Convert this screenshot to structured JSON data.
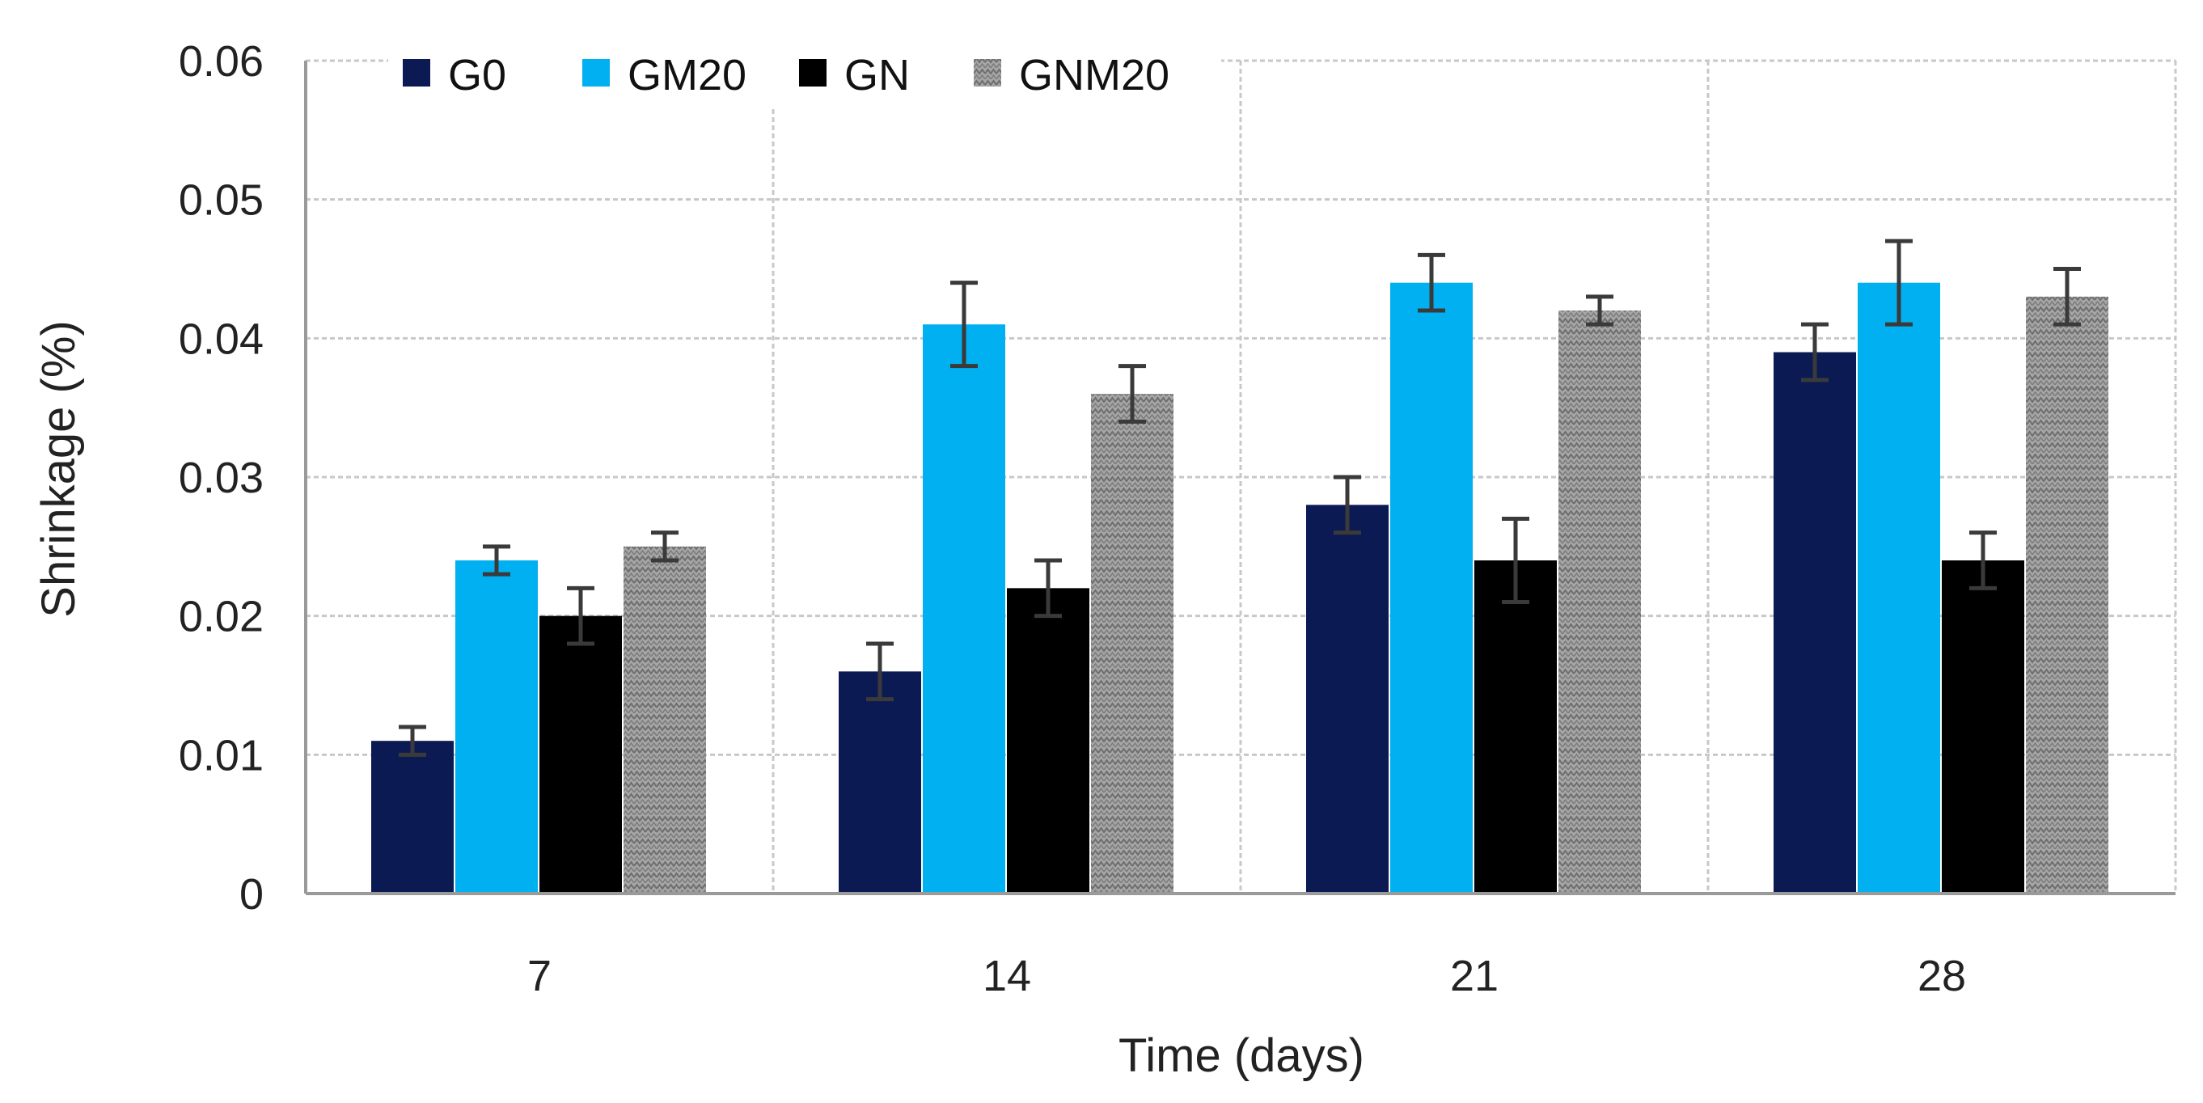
{
  "chart_data": {
    "type": "bar",
    "title": "",
    "xlabel": "Time (days)",
    "ylabel": "Shrinkage (%)",
    "categories": [
      "7",
      "14",
      "21",
      "28"
    ],
    "ylim": [
      0,
      0.06
    ],
    "yticks": [
      0,
      0.01,
      0.02,
      0.03,
      0.04,
      0.05,
      0.06
    ],
    "ytick_labels": [
      "0",
      "0.01",
      "0.02",
      "0.03",
      "0.04",
      "0.05",
      "0.06"
    ],
    "grid": true,
    "legend_position": "top-left",
    "series": [
      {
        "name": "G0",
        "color": "#0c1a54",
        "pattern": "solid",
        "values": [
          0.011,
          0.016,
          0.028,
          0.039
        ],
        "errors": [
          0.001,
          0.002,
          0.002,
          0.002
        ]
      },
      {
        "name": "GM20",
        "color": "#00b0f0",
        "pattern": "solid",
        "values": [
          0.024,
          0.041,
          0.044,
          0.044
        ],
        "errors": [
          0.001,
          0.003,
          0.002,
          0.003
        ]
      },
      {
        "name": "GN",
        "color": "#000000",
        "pattern": "solid",
        "values": [
          0.02,
          0.022,
          0.024,
          0.024
        ],
        "errors": [
          0.002,
          0.002,
          0.003,
          0.002
        ]
      },
      {
        "name": "GNM20",
        "color": "#8c8c8c",
        "pattern": "hatched",
        "values": [
          0.025,
          0.036,
          0.042,
          0.043
        ],
        "errors": [
          0.001,
          0.002,
          0.001,
          0.002
        ]
      }
    ]
  }
}
